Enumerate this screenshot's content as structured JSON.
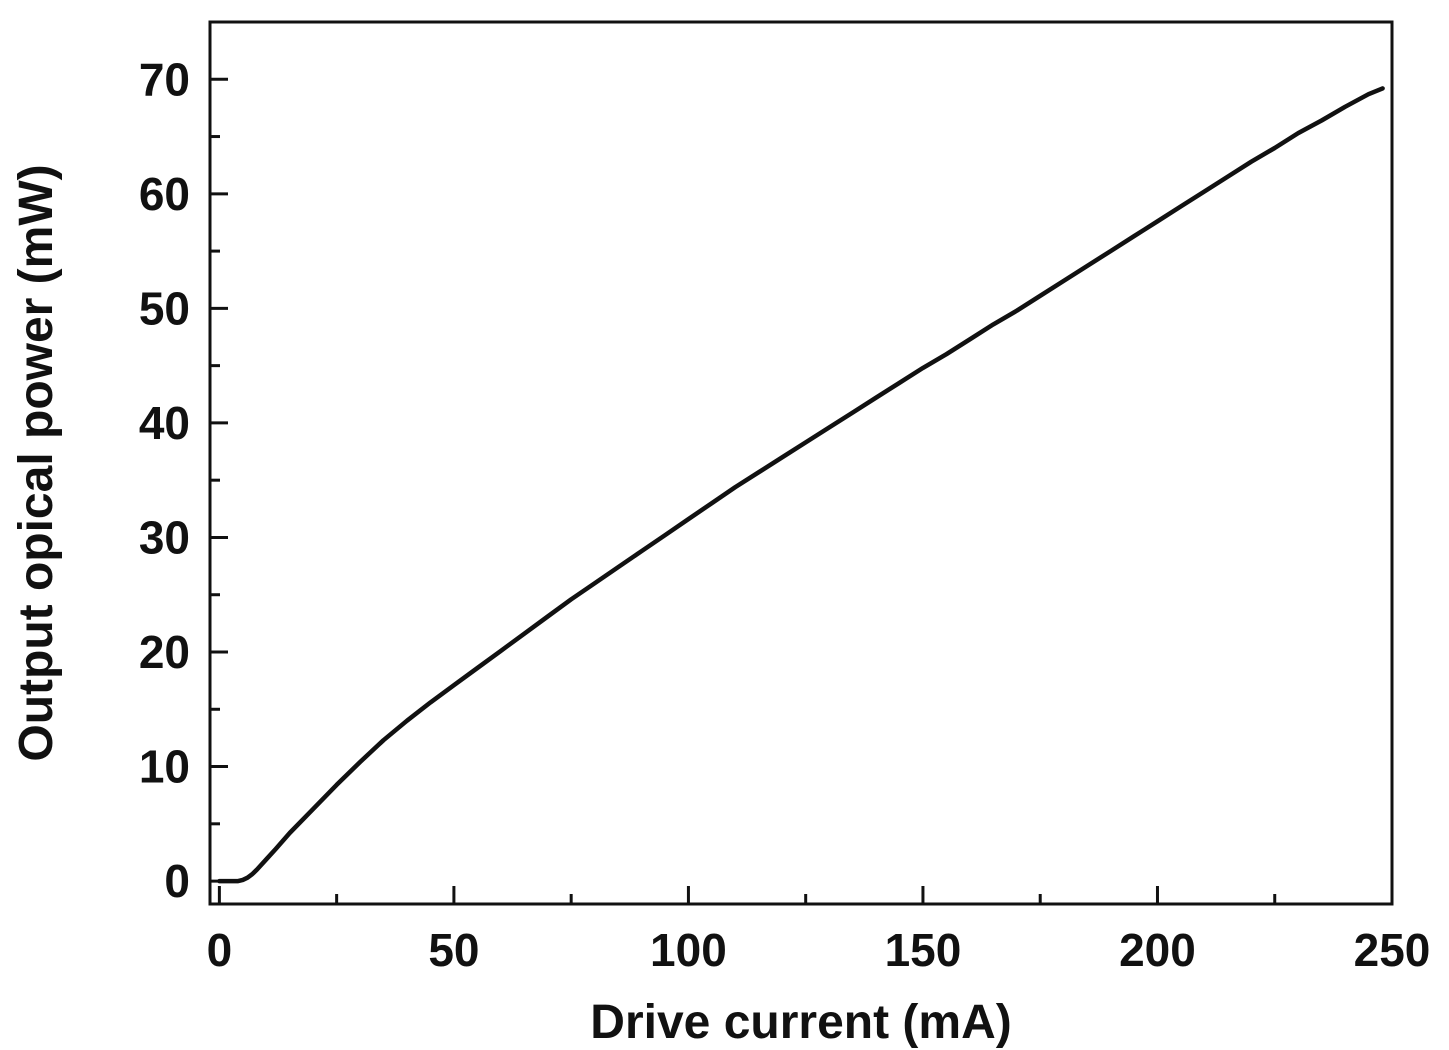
{
  "chart_data": {
    "type": "line",
    "title": "",
    "xlabel": "Drive current (mA)",
    "ylabel": "Output opical power (mW)",
    "xlim": [
      -2,
      250
    ],
    "ylim": [
      -2,
      75
    ],
    "x_ticks": [
      0,
      50,
      100,
      150,
      200,
      250
    ],
    "y_ticks": [
      0,
      10,
      20,
      30,
      40,
      50,
      60,
      70
    ],
    "x_minor_ticks": [
      25,
      75,
      125,
      175,
      225
    ],
    "y_minor_ticks": [
      5,
      15,
      25,
      35,
      45,
      55,
      65
    ],
    "grid": false,
    "legend": "none",
    "line_color": "#111111",
    "series": [
      {
        "x": [
          0,
          2,
          4,
          5,
          6,
          7,
          8,
          10,
          12,
          15,
          20,
          25,
          30,
          35,
          40,
          45,
          50,
          55,
          60,
          65,
          70,
          75,
          80,
          85,
          90,
          95,
          100,
          105,
          110,
          115,
          120,
          125,
          130,
          135,
          140,
          145,
          150,
          155,
          160,
          165,
          170,
          175,
          180,
          185,
          190,
          195,
          200,
          205,
          210,
          215,
          220,
          225,
          230,
          235,
          240,
          245,
          248
        ],
        "y": [
          0,
          0,
          0,
          0.1,
          0.3,
          0.6,
          1.0,
          1.9,
          2.8,
          4.2,
          6.3,
          8.4,
          10.4,
          12.3,
          14.0,
          15.6,
          17.1,
          18.6,
          20.1,
          21.6,
          23.1,
          24.6,
          26.0,
          27.4,
          28.8,
          30.2,
          31.6,
          33.0,
          34.4,
          35.7,
          37.0,
          38.3,
          39.6,
          40.9,
          42.2,
          43.5,
          44.8,
          46.0,
          47.3,
          48.6,
          49.8,
          51.1,
          52.4,
          53.7,
          55.0,
          56.3,
          57.6,
          58.9,
          60.2,
          61.5,
          62.8,
          64.0,
          65.3,
          66.4,
          67.6,
          68.7,
          69.2
        ]
      }
    ]
  }
}
